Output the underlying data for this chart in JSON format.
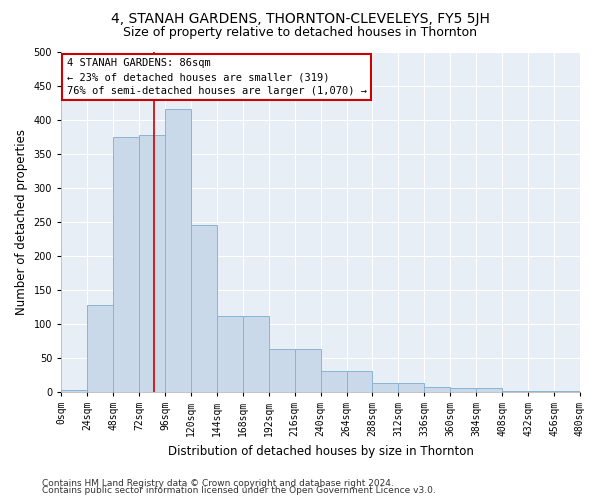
{
  "title": "4, STANAH GARDENS, THORNTON-CLEVELEYS, FY5 5JH",
  "subtitle": "Size of property relative to detached houses in Thornton",
  "xlabel": "Distribution of detached houses by size in Thornton",
  "ylabel": "Number of detached properties",
  "footnote1": "Contains HM Land Registry data © Crown copyright and database right 2024.",
  "footnote2": "Contains public sector information licensed under the Open Government Licence v3.0.",
  "bar_edges": [
    0,
    24,
    48,
    72,
    96,
    120,
    144,
    168,
    192,
    216,
    240,
    264,
    288,
    312,
    336,
    360,
    384,
    408,
    432,
    456,
    480
  ],
  "bar_heights": [
    3,
    128,
    375,
    378,
    415,
    245,
    112,
    112,
    63,
    63,
    30,
    30,
    13,
    13,
    7,
    5,
    5,
    2,
    2,
    1
  ],
  "bar_color": "#c9d9ea",
  "bar_edge_color": "#8ab4d4",
  "property_size": 86,
  "annotation_text": "4 STANAH GARDENS: 86sqm\n← 23% of detached houses are smaller (319)\n76% of semi-detached houses are larger (1,070) →",
  "annotation_box_color": "#ffffff",
  "annotation_box_edge_color": "#cc0000",
  "vline_color": "#cc0000",
  "ylim": [
    0,
    500
  ],
  "xlim": [
    0,
    480
  ],
  "yticks": [
    0,
    50,
    100,
    150,
    200,
    250,
    300,
    350,
    400,
    450,
    500
  ],
  "xtick_labels": [
    "0sqm",
    "24sqm",
    "48sqm",
    "72sqm",
    "96sqm",
    "120sqm",
    "144sqm",
    "168sqm",
    "192sqm",
    "216sqm",
    "240sqm",
    "264sqm",
    "288sqm",
    "312sqm",
    "336sqm",
    "360sqm",
    "384sqm",
    "408sqm",
    "432sqm",
    "456sqm",
    "480sqm"
  ],
  "bg_color": "#ffffff",
  "plot_bg_color": "#e8eef6",
  "grid_color": "#ffffff",
  "title_fontsize": 10,
  "subtitle_fontsize": 9,
  "tick_fontsize": 7,
  "label_fontsize": 8.5,
  "footnote_fontsize": 6.5,
  "annotation_fontsize": 7.5
}
